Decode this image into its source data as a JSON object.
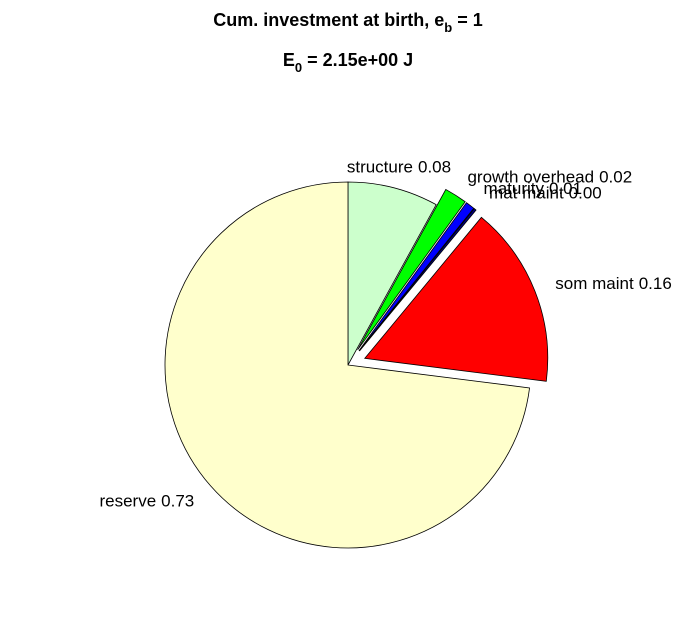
{
  "chart_data": {
    "type": "pie",
    "title": [
      "Cum. investment at birth, e",
      "b",
      " = 1"
    ],
    "subtitle": [
      "E",
      "0",
      " = 2.15e+00 J"
    ],
    "categories": [
      "structure",
      "growth overhead",
      "maturity",
      "mat maint",
      "som maint",
      "reserve"
    ],
    "values": [
      0.08,
      0.02,
      0.008,
      0.002,
      0.16,
      0.73
    ],
    "value_labels": [
      "0.08",
      "0.02",
      "0.01",
      "0.00",
      "0.16",
      "0.73"
    ],
    "colors": [
      "#ccffcc",
      "#00ff00",
      "#0000ff",
      "#000080",
      "#ff0000",
      "#ffffcc"
    ],
    "explode": [
      false,
      true,
      true,
      true,
      true,
      false
    ]
  }
}
